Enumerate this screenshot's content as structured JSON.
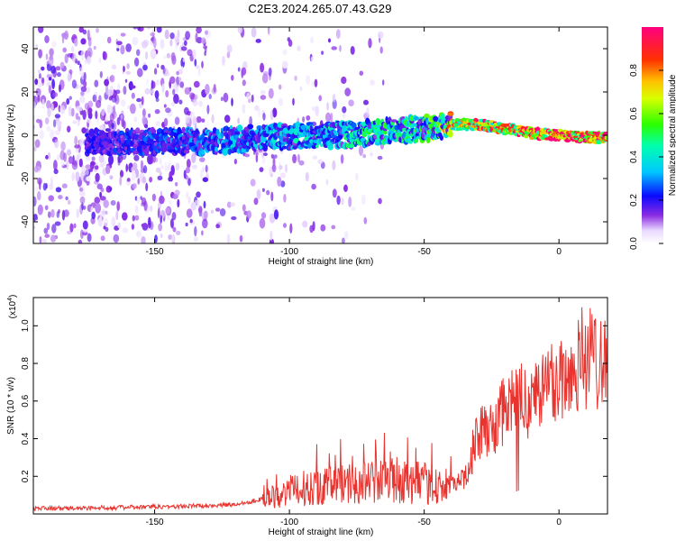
{
  "title": "C2E3.2024.265.07.43.G29",
  "chart_data": [
    {
      "type": "heatmap",
      "xlabel": "Height of straight line (km)",
      "ylabel": "Frequency (Hz)",
      "xlim": [
        -195,
        18
      ],
      "ylim": [
        -50,
        50
      ],
      "x_ticks": [
        -150,
        -100,
        -50,
        0
      ],
      "y_ticks": [
        -40,
        -20,
        0,
        20,
        40
      ],
      "colorbar": {
        "label": "Normalized spectral amplitude",
        "range": [
          0.0,
          1.0
        ],
        "ticks": [
          0.0,
          0.2,
          0.4,
          0.6,
          0.8
        ]
      },
      "ridge": {
        "description_points_x": [
          -172,
          -150,
          -130,
          -110,
          -90,
          -70,
          -50,
          -40,
          -30,
          -20,
          -10,
          0,
          10,
          18
        ],
        "frequency_hz": [
          -3,
          -3,
          -3,
          -1,
          0,
          1,
          3,
          5,
          5,
          3,
          1,
          0,
          -1,
          -1
        ],
        "peak_amplitude": [
          0.2,
          0.25,
          0.3,
          0.35,
          0.4,
          0.45,
          0.5,
          0.75,
          0.85,
          0.85,
          0.9,
          0.95,
          0.95,
          0.9
        ]
      }
    },
    {
      "type": "line",
      "xlabel": "Height of straight line (km)",
      "ylabel": "SNR (10 * v/v)",
      "y_scale_label": "(x10",
      "y_scale_exp": "4",
      "xlim": [
        -195,
        18
      ],
      "ylim": [
        0,
        1.15
      ],
      "x_ticks": [
        -150,
        -100,
        -50,
        0
      ],
      "y_ticks": [
        0.2,
        0.4,
        0.6,
        0.8,
        1.0
      ],
      "series": [
        {
          "color": "#e8332e",
          "x": [
            -195,
            -180,
            -160,
            -140,
            -120,
            -110,
            -100,
            -90,
            -80,
            -70,
            -60,
            -50,
            -40,
            -35,
            -30,
            -25,
            -20,
            -17,
            -15,
            -10,
            -5,
            0,
            5,
            8,
            10,
            15,
            18
          ],
          "y": [
            0.03,
            0.03,
            0.035,
            0.04,
            0.05,
            0.08,
            0.12,
            0.15,
            0.16,
            0.17,
            0.18,
            0.16,
            0.14,
            0.2,
            0.42,
            0.45,
            0.55,
            0.6,
            0.6,
            0.62,
            0.68,
            0.72,
            0.75,
            0.85,
            0.82,
            0.85,
            0.8
          ]
        }
      ]
    }
  ]
}
